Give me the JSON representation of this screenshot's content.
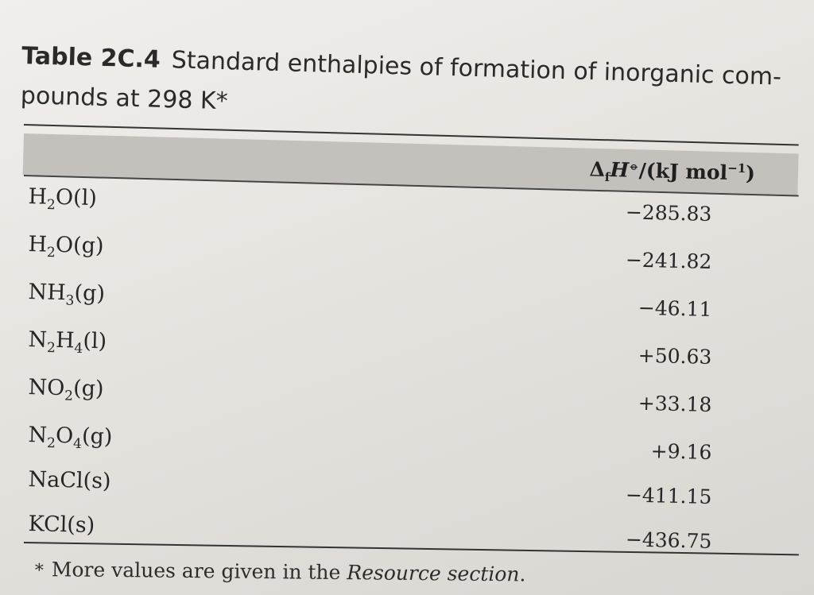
{
  "table": {
    "number": "Table 2C.4",
    "title_line1": "Standard enthalpies of formation of inorganic com-",
    "title_line2": "pounds at 298 K*",
    "header": {
      "prefix": "Δ",
      "sub": "f",
      "symbol": "H",
      "sup": "⦵",
      "units_open": "/(kJ mol",
      "units_sup": "−1",
      "units_close": ")"
    },
    "rows": [
      {
        "parts": [
          "H",
          "2",
          "O(l)"
        ],
        "value": "−285.83"
      },
      {
        "parts": [
          "H",
          "2",
          "O(g)"
        ],
        "value": "−241.82"
      },
      {
        "parts": [
          "NH",
          "3",
          "(g)"
        ],
        "value": "−46.11"
      },
      {
        "parts": [
          "N",
          "2",
          "H",
          "4",
          "(l)"
        ],
        "value": "+50.63"
      },
      {
        "parts": [
          "NO",
          "2",
          "(g)"
        ],
        "value": "+33.18"
      },
      {
        "parts": [
          "N",
          "2",
          "O",
          "4",
          "(g)"
        ],
        "value": "+9.16"
      },
      {
        "parts": [
          "NaCl(s)"
        ],
        "value": "−411.15"
      },
      {
        "parts": [
          "KCl(s)"
        ],
        "value": "−436.75"
      }
    ],
    "footnote": {
      "star": "*",
      "text": "More values are given in the ",
      "italic": "Resource section",
      "end": "."
    }
  }
}
